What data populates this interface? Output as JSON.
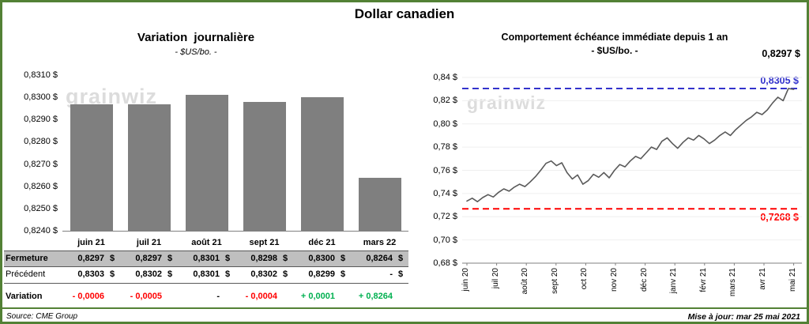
{
  "page": {
    "title": "Dollar canadien",
    "watermark": "grainwiz",
    "accent_color": "#538135",
    "footer": {
      "source": "Source: CME Group",
      "updated": "Mise à jour: mar 25 mai 2021"
    }
  },
  "chart_data": [
    {
      "type": "bar",
      "title": "Variation journalière",
      "subtitle": "- $US/bo. -",
      "categories": [
        "juin 21",
        "juil 21",
        "août 21",
        "sept 21",
        "déc 21",
        "mars 22"
      ],
      "values": [
        0.8297,
        0.8297,
        0.8301,
        0.8298,
        0.83,
        0.8264
      ],
      "ylim": [
        0.824,
        0.831
      ],
      "y_tick_labels": [
        "0,8240 $",
        "0,8250 $",
        "0,8260 $",
        "0,8270 $",
        "0,8280 $",
        "0,8290 $",
        "0,8300 $",
        "0,8310 $"
      ],
      "bar_color": "#7f7f7f",
      "grid": false,
      "legend": "none"
    },
    {
      "type": "line",
      "title": "Comportement échéance immédiate depuis 1 an",
      "subtitle": "- $US/bo. -",
      "x_tick_labels": [
        "juin 20",
        "juil 20",
        "août 20",
        "sept 20",
        "oct 20",
        "nov 20",
        "déc 20",
        "janv 21",
        "févr 21",
        "mars 21",
        "avr 21",
        "mai 21"
      ],
      "ylim": [
        0.68,
        0.84
      ],
      "y_tick_labels": [
        "0,68 $",
        "0,70 $",
        "0,72 $",
        "0,74 $",
        "0,76 $",
        "0,78 $",
        "0,80 $",
        "0,82 $",
        "0,84 $"
      ],
      "line_color": "#595959",
      "grid": true,
      "legend": "none",
      "last_value_label": "0,8297 $",
      "reference_lines": [
        {
          "value": 0.8305,
          "label": "0,8305 $",
          "color": "#3333cc",
          "style": "dashed"
        },
        {
          "value": 0.7268,
          "label": "0,7268 $",
          "color": "#ff0000",
          "style": "dashed"
        }
      ],
      "values": [
        0.7335,
        0.736,
        0.733,
        0.7365,
        0.739,
        0.737,
        0.741,
        0.744,
        0.742,
        0.7455,
        0.748,
        0.746,
        0.75,
        0.7545,
        0.76,
        0.766,
        0.768,
        0.764,
        0.7665,
        0.758,
        0.7525,
        0.756,
        0.748,
        0.751,
        0.7565,
        0.754,
        0.758,
        0.7535,
        0.76,
        0.765,
        0.763,
        0.768,
        0.772,
        0.77,
        0.775,
        0.78,
        0.778,
        0.785,
        0.788,
        0.783,
        0.779,
        0.784,
        0.788,
        0.786,
        0.79,
        0.787,
        0.783,
        0.786,
        0.79,
        0.793,
        0.79,
        0.795,
        0.799,
        0.803,
        0.806,
        0.81,
        0.808,
        0.812,
        0.818,
        0.823,
        0.82,
        0.8305,
        0.8297
      ]
    }
  ],
  "table": {
    "colors": {
      "negative": "#ff0000",
      "positive": "#00b050",
      "neutral": "#000000",
      "shaded_bg": "#bfbfbf"
    },
    "rows": [
      {
        "label": "Fermeture",
        "shaded": true,
        "cells": [
          {
            "num": "0,8297",
            "cur": "$"
          },
          {
            "num": "0,8297",
            "cur": "$"
          },
          {
            "num": "0,8301",
            "cur": "$"
          },
          {
            "num": "0,8298",
            "cur": "$"
          },
          {
            "num": "0,8300",
            "cur": "$"
          },
          {
            "num": "0,8264",
            "cur": "$"
          }
        ]
      },
      {
        "label": "Précédent",
        "shaded": false,
        "cells": [
          {
            "num": "0,8303",
            "cur": "$"
          },
          {
            "num": "0,8302",
            "cur": "$"
          },
          {
            "num": "0,8301",
            "cur": "$"
          },
          {
            "num": "0,8302",
            "cur": "$"
          },
          {
            "num": "0,8299",
            "cur": "$"
          },
          {
            "num": "-",
            "cur": "$"
          }
        ]
      },
      {
        "label": "Variation",
        "shaded": false,
        "cells": [
          {
            "num": "- 0,0006",
            "tone": "negative"
          },
          {
            "num": "- 0,0005",
            "tone": "negative"
          },
          {
            "num": "-",
            "tone": "neutral"
          },
          {
            "num": "- 0,0004",
            "tone": "negative"
          },
          {
            "num": "+ 0,0001",
            "tone": "positive"
          },
          {
            "num": "+ 0,8264",
            "tone": "positive"
          }
        ]
      }
    ]
  }
}
